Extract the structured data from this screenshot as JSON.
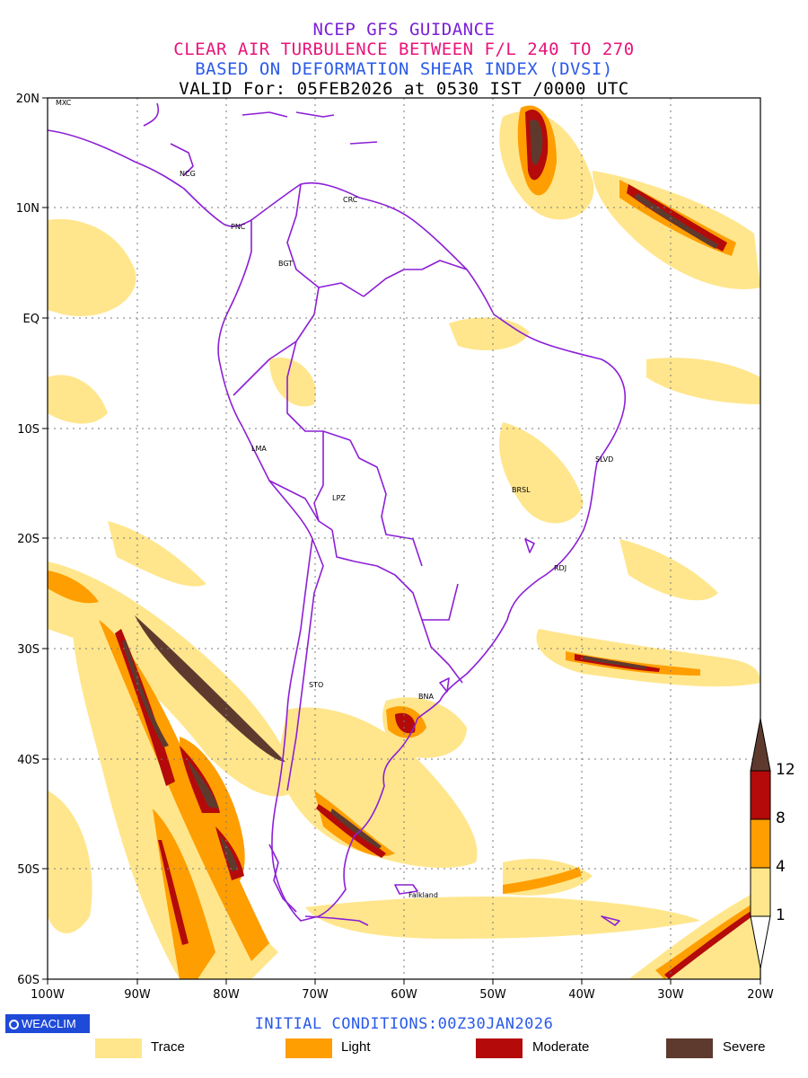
{
  "header": {
    "line1": "NCEP GFS GUIDANCE",
    "line2": "CLEAR AIR TURBULENCE BETWEEN F/L 240 TO 270",
    "line3": "BASED ON DEFORMATION SHEAR INDEX (DVSI)",
    "line4": "VALID For: 05FEB2026 at 0530 IST /0000 UTC"
  },
  "axes": {
    "x_labels": [
      "100W",
      "90W",
      "80W",
      "70W",
      "60W",
      "50W",
      "40W",
      "30W",
      "20W"
    ],
    "y_labels": [
      "20N",
      "10N",
      "EQ",
      "10S",
      "20S",
      "30S",
      "40S",
      "50S",
      "60S"
    ]
  },
  "cities": [
    {
      "name": "MXC"
    },
    {
      "name": "NCG"
    },
    {
      "name": "PNC"
    },
    {
      "name": "CRC"
    },
    {
      "name": "BGT"
    },
    {
      "name": "LMA"
    },
    {
      "name": "LPZ"
    },
    {
      "name": "SLVD"
    },
    {
      "name": "BRSL"
    },
    {
      "name": "RDJ"
    },
    {
      "name": "STO"
    },
    {
      "name": "BNA"
    },
    {
      "name": "Falkland"
    }
  ],
  "colorbar": {
    "levels": [
      "12",
      "8",
      "4",
      "1"
    ],
    "colors": {
      "severe": "#5e3a2e",
      "moderate": "#b40a0a",
      "light": "#ff9e00",
      "trace": "#ffe68c"
    }
  },
  "footer": {
    "logo": "WEACLIM",
    "init": "INITIAL CONDITIONS:00Z30JAN2026",
    "legend": [
      {
        "label": "Trace",
        "color": "#ffe68c"
      },
      {
        "label": "Light",
        "color": "#ff9e00"
      },
      {
        "label": "Moderate",
        "color": "#b40a0a"
      },
      {
        "label": "Severe",
        "color": "#5e3a2e"
      }
    ]
  }
}
